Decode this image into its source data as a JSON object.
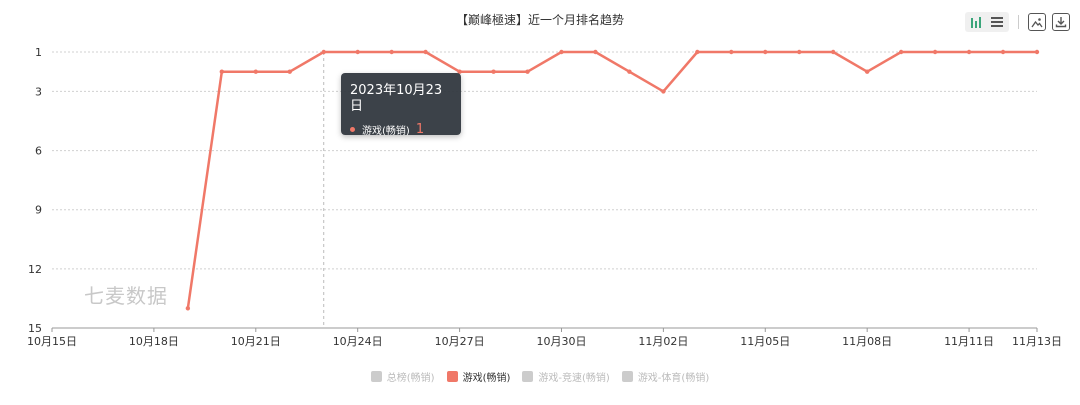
{
  "chart_data": {
    "type": "line",
    "title": "【巅峰極速】近一个月排名趋势",
    "x": [
      "10月15日",
      "10月16日",
      "10月17日",
      "10月18日",
      "10月19日",
      "10月20日",
      "10月21日",
      "10月22日",
      "10月23日",
      "10月24日",
      "10月25日",
      "10月26日",
      "10月27日",
      "10月28日",
      "10月29日",
      "10月30日",
      "10月31日",
      "11月01日",
      "11月02日",
      "11月03日",
      "11月04日",
      "11月05日",
      "11月06日",
      "11月07日",
      "11月08日",
      "11月09日",
      "11月10日",
      "11月11日",
      "11月12日",
      "11月13日"
    ],
    "x_ticks": [
      "10月15日",
      "10月18日",
      "10月21日",
      "10月24日",
      "10月27日",
      "10月30日",
      "11月02日",
      "11月05日",
      "11月08日",
      "11月11日",
      "11月13日"
    ],
    "y_ticks": [
      1,
      3,
      6,
      9,
      12,
      15
    ],
    "ylim": [
      1,
      15
    ],
    "y_inverted": true,
    "grid": "horizontal-dashed",
    "legend_position": "bottom",
    "series": [
      {
        "name": "游戏(畅销)",
        "color": "#f07868",
        "values": [
          null,
          null,
          null,
          null,
          14,
          2,
          2,
          2,
          1,
          1,
          1,
          1,
          2,
          2,
          2,
          1,
          1,
          2,
          3,
          1,
          1,
          1,
          1,
          1,
          2,
          1,
          1,
          1,
          1,
          1
        ]
      }
    ],
    "legend": [
      {
        "name": "总榜(畅销)",
        "active": false,
        "color": "#cccccc"
      },
      {
        "name": "游戏(畅销)",
        "active": true,
        "color": "#f07868"
      },
      {
        "name": "游戏-竞速(畅销)",
        "active": false,
        "color": "#cccccc"
      },
      {
        "name": "游戏-体育(畅销)",
        "active": false,
        "color": "#cccccc"
      }
    ],
    "tooltip": {
      "date": "2023年10月23日",
      "series": "游戏(畅销)",
      "value": "1",
      "x_index": 8
    }
  },
  "watermark": "七麦数据",
  "toolbar": {
    "bar_icon": "bar-chart-icon",
    "list_icon": "list-icon",
    "image_icon": "image-icon",
    "download_icon": "download-icon"
  }
}
